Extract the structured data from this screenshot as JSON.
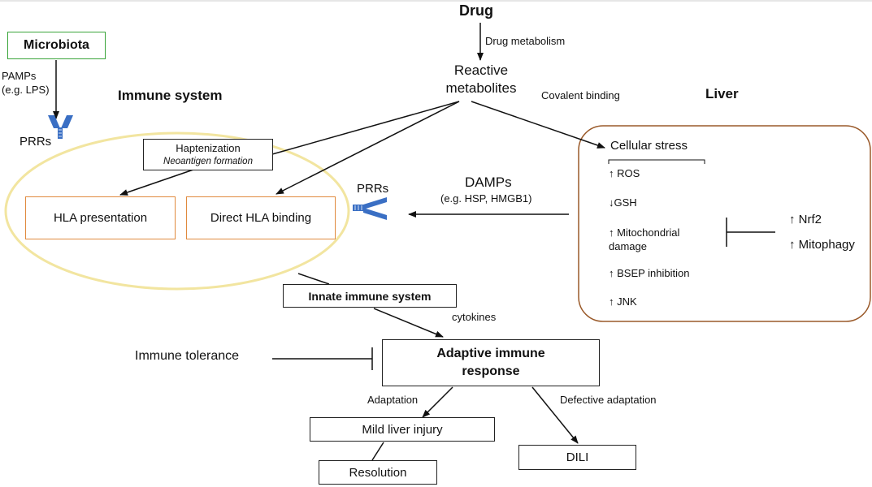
{
  "drug": "Drug",
  "drug_metabolism": "Drug metabolism",
  "reactive_metabolites": [
    "Reactive",
    "metabolites"
  ],
  "covalent_binding": "Covalent binding",
  "microbiota": "Microbiota",
  "pamps": [
    "PAMPs",
    "(e.g. LPS)"
  ],
  "prrs_left": "PRRs",
  "immune_system": "Immune system",
  "haptenization": "Haptenization",
  "neoantigen_formation": "Neoantigen formation",
  "hla_presentation": "HLA presentation",
  "direct_hla_binding": "Direct HLA binding",
  "prrs_mid": "PRRs",
  "damps": "DAMPs",
  "damps_examples": "(e.g. HSP, HMGB1)",
  "liver": "Liver",
  "cellular_stress": "Cellular stress",
  "stress_items": [
    "↑ ROS",
    "↓GSH",
    "↑ Mitochondrial",
    "damage",
    "↑ BSEP inhibition",
    "↑ JNK"
  ],
  "nrf2": "↑ Nrf2",
  "mitophagy": "↑ Mitophagy",
  "innate_immune_system": "Innate immune system",
  "cytokines": "cytokines",
  "immune_tolerance": "Immune tolerance",
  "adaptive_immune_response": [
    "Adaptive immune",
    "response"
  ],
  "adaptation": "Adaptation",
  "defective_adaptation": "Defective adaptation",
  "mild_liver_injury": "Mild liver injury",
  "dili": "DILI",
  "resolution": "Resolution",
  "colors": {
    "ellipse": "#f2e5a0",
    "orange_border": "#e08a3e",
    "liver_border": "#9a5a2a",
    "green_border": "#3aa53a",
    "receptor": "#3a6fc4"
  }
}
